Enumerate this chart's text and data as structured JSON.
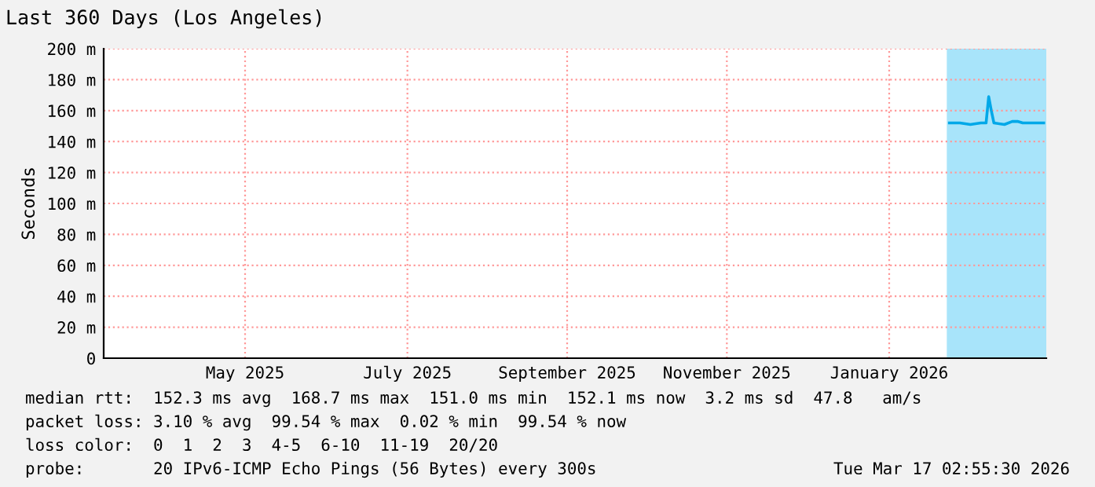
{
  "chart_data": {
    "type": "line",
    "title": "Last 360 Days (Los Angeles)",
    "ylabel": "Seconds",
    "x": [
      "2026-02-08",
      "2026-02-12",
      "2026-02-16",
      "2026-02-20",
      "2026-02-22",
      "2026-02-23",
      "2026-02-24",
      "2026-02-25",
      "2026-03-01",
      "2026-03-04",
      "2026-03-06",
      "2026-03-08",
      "2026-03-12",
      "2026-03-16"
    ],
    "series": [
      {
        "color": "#00a8e8",
        "values": [
          152,
          152,
          151,
          152,
          152,
          169,
          160,
          152,
          151,
          153,
          153,
          152,
          152,
          152
        ]
      }
    ],
    "xlim": [
      "2025-03-22",
      "2026-03-17"
    ],
    "xticks": [
      {
        "value": "2025-05-15",
        "label": "May 2025"
      },
      {
        "value": "2025-07-16",
        "label": "July 2025"
      },
      {
        "value": "2025-09-15",
        "label": "September 2025"
      },
      {
        "value": "2025-11-15",
        "label": "November 2025"
      },
      {
        "value": "2026-01-16",
        "label": "January 2026"
      }
    ],
    "ylim": [
      0,
      200
    ],
    "yticks": [
      0,
      {
        "value": 20,
        "label": "20 m"
      },
      {
        "value": 40,
        "label": "40 m"
      },
      {
        "value": 60,
        "label": "60 m"
      },
      {
        "value": 80,
        "label": "80 m"
      },
      {
        "value": 100,
        "label": "100 m"
      },
      {
        "value": 120,
        "label": "120 m"
      },
      {
        "value": 140,
        "label": "140 m"
      },
      {
        "value": 160,
        "label": "160 m"
      },
      {
        "value": 180,
        "label": "180 m"
      },
      {
        "value": 200,
        "label": "200 m"
      }
    ],
    "bands": [
      {
        "axis": "x",
        "from": "2026-02-07",
        "to": "2026-03-17",
        "color": "#a8e4fa"
      }
    ],
    "grid": true,
    "marker": "none",
    "line_style": "solid",
    "annotations": [
      "median rtt:  152.3 ms avg  168.7 ms max  151.0 ms min  152.1 ms now  3.2 ms sd  47.8   am/s",
      "packet loss: 3.10 % avg  99.54 % max  0.02 % min  99.54 % now",
      "loss color:  0  1  2  3  4-5  6-10  11-19  20/20",
      "probe:       20 IPv6-ICMP Echo Pings (56 Bytes) every 300s",
      "Tue Mar 17 02:55:30 2026"
    ]
  }
}
